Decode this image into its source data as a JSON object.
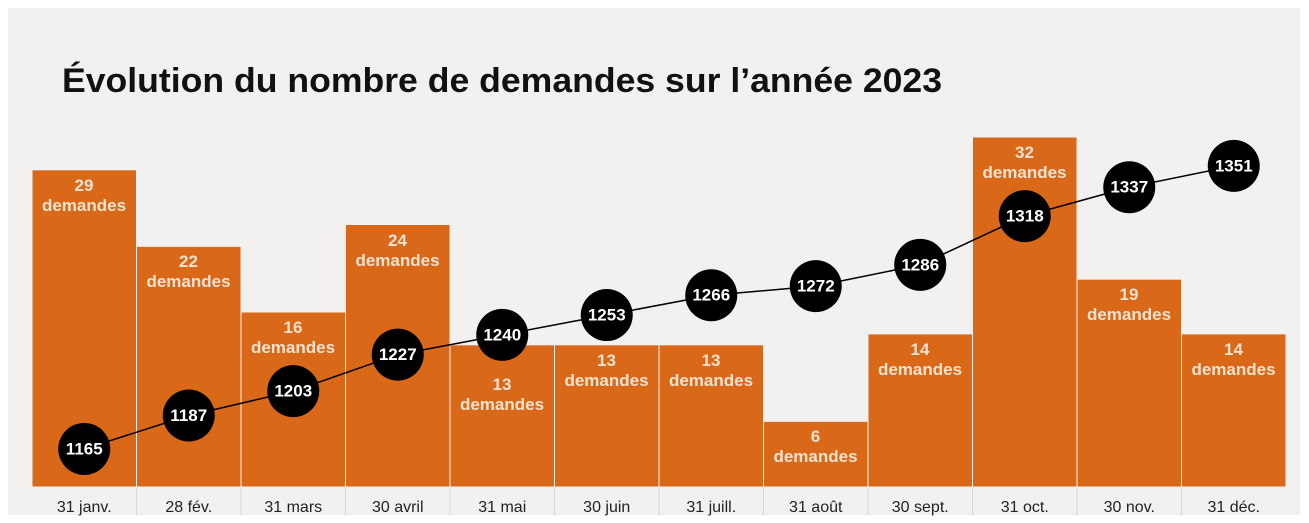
{
  "chart_data": {
    "type": "bar",
    "title": "Évolution du nombre de demandes sur l’année 2023",
    "categories": [
      "31 janv.",
      "28 fév.",
      "31 mars",
      "30 avril",
      "31 mai",
      "30 juin",
      "31 juill.",
      "31 août",
      "30 sept.",
      "31 oct.",
      "30 nov.",
      "31 déc."
    ],
    "series": [
      {
        "type": "bar",
        "color": "#d96818",
        "values": [
          29,
          22,
          16,
          24,
          13,
          13,
          13,
          6,
          14,
          32,
          19,
          14
        ],
        "value_labels": [
          "29\ndemandes",
          "22\ndemandes",
          "16\ndemandes",
          "24\ndemandes",
          "13\ndemandes",
          "13\ndemandes",
          "13\ndemandes",
          "6\ndemandes",
          "14\ndemandes",
          "32\ndemandes",
          "19\ndemandes",
          "14\ndemandes"
        ]
      },
      {
        "type": "line",
        "color": "#000000",
        "axis": "y2",
        "values": [
          1165,
          1187,
          1203,
          1227,
          1240,
          1253,
          1266,
          1272,
          1286,
          1318,
          1337,
          1351
        ]
      }
    ],
    "ylim": [
      0,
      32
    ],
    "y2lim": [
      1140,
      1370
    ]
  }
}
